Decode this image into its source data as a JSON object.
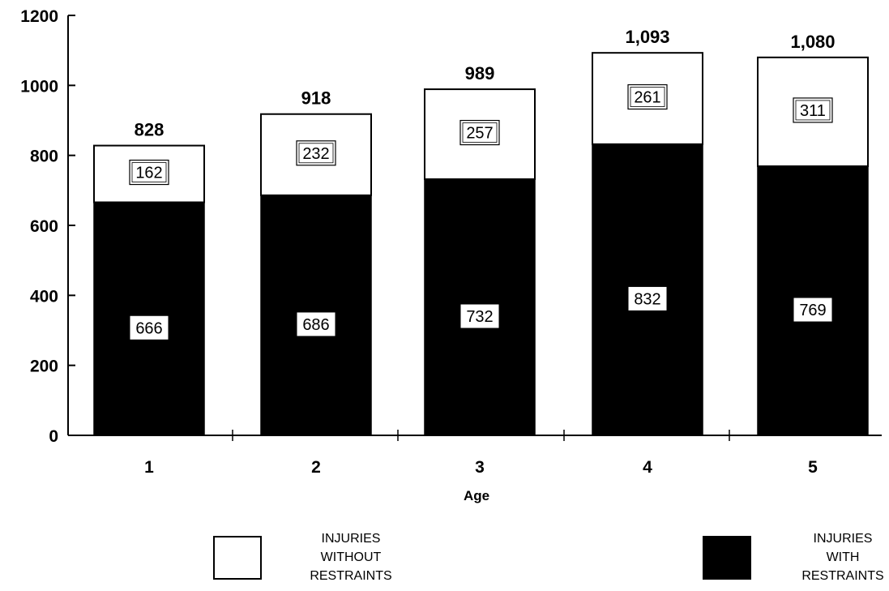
{
  "chart_data": {
    "type": "bar",
    "stacked": true,
    "categories": [
      "1",
      "2",
      "3",
      "4",
      "5"
    ],
    "series": [
      {
        "name": "INJURIES WITH RESTRAINTS",
        "color": "#000000",
        "values": [
          666,
          686,
          732,
          832,
          769
        ],
        "labels": [
          "666",
          "686",
          "732",
          "832",
          "769"
        ]
      },
      {
        "name": "INJURIES WITHOUT RESTRAINTS",
        "color": "#ffffff",
        "values": [
          162,
          232,
          257,
          261,
          311
        ],
        "labels": [
          "162",
          "232",
          "257",
          "261",
          "311"
        ]
      }
    ],
    "totals": [
      828,
      918,
      989,
      1093,
      1080
    ],
    "total_labels": [
      "828",
      "918",
      "989",
      "1,093",
      "1,080"
    ],
    "title": "",
    "xlabel": "Age",
    "ylabel": "",
    "ylim": [
      0,
      1200
    ],
    "yticks": [
      0,
      200,
      400,
      600,
      800,
      1000,
      1200
    ],
    "ytick_labels": [
      "0",
      "200",
      "400",
      "600",
      "800",
      "1000",
      "1200"
    ],
    "grid": false,
    "legend": {
      "placement": "bottom",
      "items": [
        {
          "lines": [
            "INJURIES",
            "WITHOUT",
            "RESTRAINTS"
          ],
          "fill": "#ffffff"
        },
        {
          "lines": [
            "INJURIES",
            "WITH",
            "RESTRAINTS"
          ],
          "fill": "#000000"
        }
      ]
    }
  }
}
